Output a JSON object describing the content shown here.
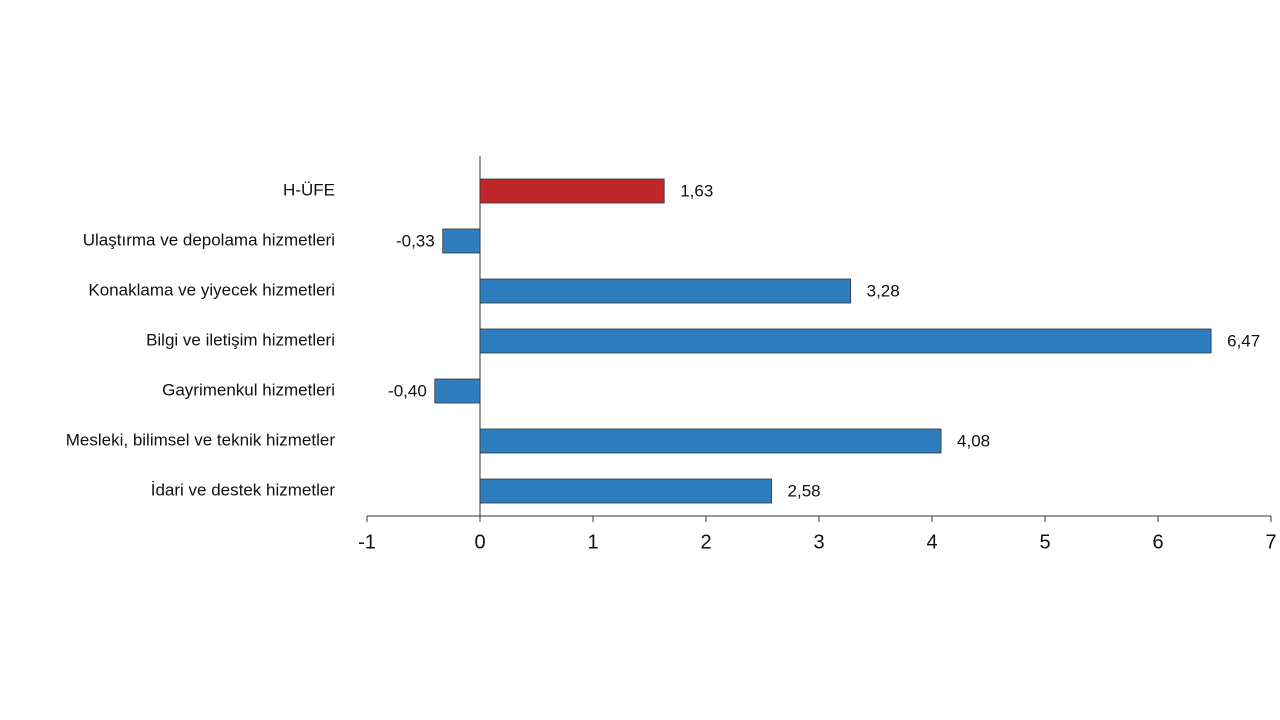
{
  "chart_data": {
    "type": "hbar",
    "categories": [
      "H-ÜFE",
      "Ulaştırma ve depolama hizmetleri",
      "Konaklama ve yiyecek hizmetleri",
      "Bilgi ve iletişim hizmetleri",
      "Gayrimenkul hizmetleri",
      "Mesleki, bilimsel ve teknik hizmetler",
      "İdari ve destek hizmetler"
    ],
    "values": [
      1.63,
      -0.33,
      3.28,
      6.47,
      -0.4,
      4.08,
      2.58
    ],
    "value_labels": [
      "1,63",
      "-0,33",
      "3,28",
      "6,47",
      "-0,40",
      "4,08",
      "2,58"
    ],
    "colors": [
      "#c0272d",
      "#2e7ebf",
      "#2e7ebf",
      "#2e7ebf",
      "#2e7ebf",
      "#2e7ebf",
      "#2e7ebf"
    ],
    "xlim": [
      -1,
      7
    ],
    "xticks": [
      -1,
      0,
      1,
      2,
      3,
      4,
      5,
      6,
      7
    ]
  }
}
